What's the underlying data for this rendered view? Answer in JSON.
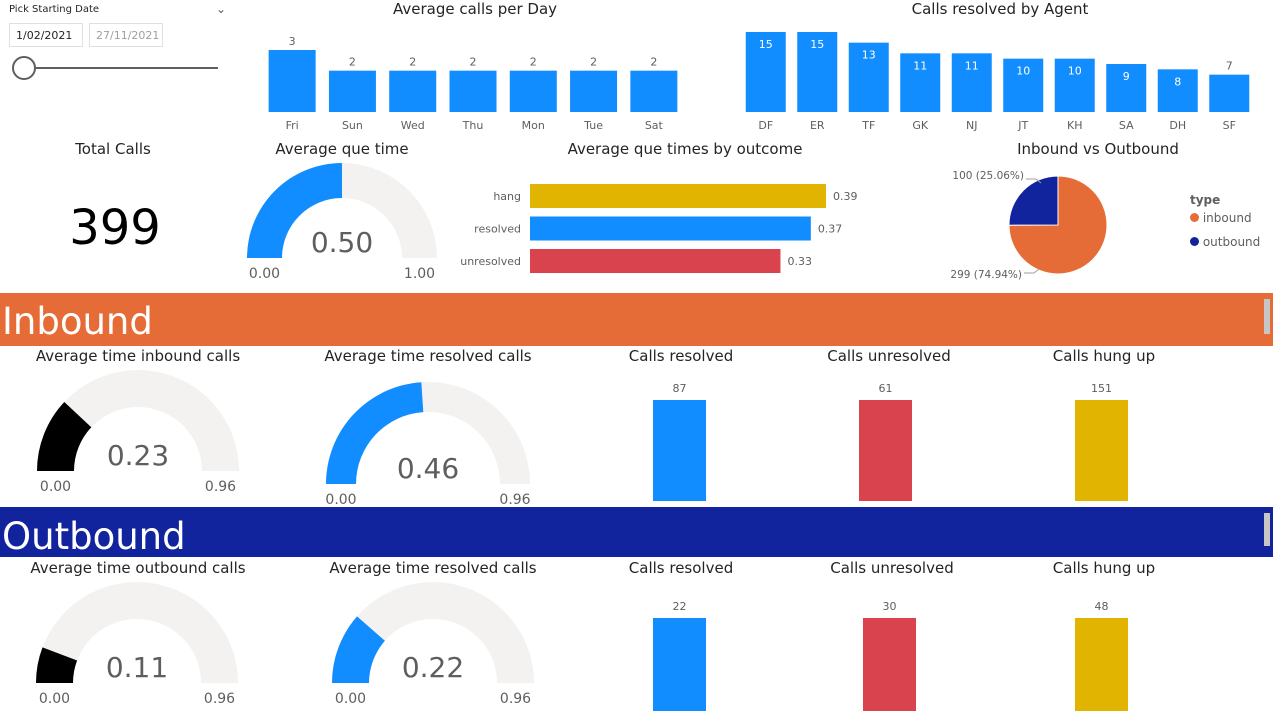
{
  "slicer": {
    "label": "Pick Starting Date",
    "start": "1/02/2021",
    "end": "27/11/2021",
    "position": 0.0
  },
  "calls_per_day": {
    "title": "Average calls per Day",
    "chart_data": {
      "type": "bar",
      "categories": [
        "Fri",
        "Sun",
        "Wed",
        "Thu",
        "Mon",
        "Tue",
        "Sat"
      ],
      "values": [
        3,
        2,
        2,
        2,
        2,
        2,
        2
      ],
      "color": "#118DFF"
    }
  },
  "by_agent": {
    "title": "Calls resolved by Agent",
    "chart_data": {
      "type": "bar",
      "categories": [
        "DF",
        "ER",
        "TF",
        "GK",
        "NJ",
        "JT",
        "KH",
        "SA",
        "DH",
        "SF"
      ],
      "values": [
        15,
        15,
        13,
        11,
        11,
        10,
        10,
        9,
        8,
        7
      ],
      "color": "#118DFF"
    }
  },
  "total_calls": {
    "title": "Total Calls",
    "value": "399"
  },
  "avg_que": {
    "title": "Average que time",
    "value": "0.50",
    "value_num": 0.5,
    "min": "0.00",
    "max": "1.00",
    "max_num": 1.0,
    "color": "#118DFF"
  },
  "que_by_outcome": {
    "title": "Average que times by outcome",
    "chart_data": {
      "type": "bar",
      "orientation": "horizontal",
      "categories": [
        "hang",
        "resolved",
        "unresolved"
      ],
      "values": [
        0.39,
        0.37,
        0.33
      ],
      "labels": [
        "0.39",
        "0.37",
        "0.33"
      ],
      "colors": [
        "#E0B400",
        "#118DFF",
        "#D9434E"
      ]
    }
  },
  "in_vs_out": {
    "title": "Inbound vs Outbound",
    "legend_title": "type",
    "chart_data": {
      "type": "pie",
      "series": [
        {
          "name": "inbound",
          "value": 299,
          "label": "299 (74.94%)",
          "color": "#E66C37"
        },
        {
          "name": "outbound",
          "value": 100,
          "label": "100 (25.06%)",
          "color": "#12239E"
        }
      ]
    }
  },
  "inbound": {
    "banner": "Inbound",
    "color": "#E66C37",
    "g1": {
      "title": "Average time inbound calls",
      "value": "0.23",
      "value_num": 0.23,
      "min": "0.00",
      "max": "0.96",
      "max_num": 0.96,
      "color": "#000000"
    },
    "g2": {
      "title": "Average time resolved calls",
      "value": "0.46",
      "value_num": 0.46,
      "min": "0.00",
      "max": "0.96",
      "max_num": 0.96,
      "color": "#118DFF"
    },
    "resolved": {
      "title": "Calls resolved",
      "label": "87",
      "value": 87,
      "color": "#118DFF"
    },
    "unresolved": {
      "title": "Calls unresolved",
      "label": "61",
      "value": 61,
      "color": "#D9434E"
    },
    "hung": {
      "title": "Calls hung up",
      "label": "151",
      "value": 151,
      "color": "#E0B400"
    }
  },
  "outbound": {
    "banner": "Outbound",
    "color": "#12239E",
    "g1": {
      "title": "Average time outbound calls",
      "value": "0.11",
      "value_num": 0.11,
      "min": "0.00",
      "max": "0.96",
      "max_num": 0.96,
      "color": "#000000"
    },
    "g2": {
      "title": "Average time resolved calls",
      "value": "0.22",
      "value_num": 0.22,
      "min": "0.00",
      "max": "0.96",
      "max_num": 0.96,
      "color": "#118DFF"
    },
    "resolved": {
      "title": "Calls resolved",
      "label": "22",
      "value": 22,
      "color": "#118DFF"
    },
    "unresolved": {
      "title": "Calls unresolved",
      "label": "30",
      "value": 30,
      "color": "#D9434E"
    },
    "hung": {
      "title": "Calls hung up",
      "label": "48",
      "value": 48,
      "color": "#E0B400"
    }
  }
}
